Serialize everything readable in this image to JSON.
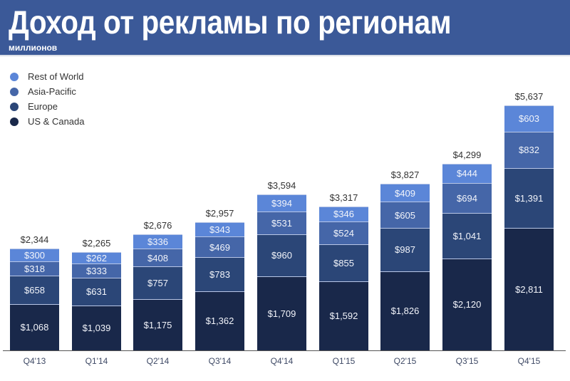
{
  "header": {
    "title": "Доход от рекламы по регионам",
    "subtitle": "миллионов",
    "background": "#3b5998"
  },
  "legend": [
    {
      "label": "Rest of World",
      "color": "#5b86d8"
    },
    {
      "label": "Asia-Pacific",
      "color": "#4566a8"
    },
    {
      "label": "Europe",
      "color": "#2b4677"
    },
    {
      "label": "US & Canada",
      "color": "#19284a"
    }
  ],
  "chart_data": {
    "type": "bar",
    "stacked": true,
    "title": "Доход от рекламы по регионам",
    "subtitle": "миллионов",
    "xlabel": "",
    "ylabel": "",
    "categories": [
      "Q4'13",
      "Q1'14",
      "Q2'14",
      "Q3'14",
      "Q4'14",
      "Q1'15",
      "Q2'15",
      "Q3'15",
      "Q4'15"
    ],
    "series": [
      {
        "name": "US & Canada",
        "color": "#19284a",
        "values": [
          1068,
          1039,
          1175,
          1362,
          1709,
          1592,
          1826,
          2120,
          2811
        ]
      },
      {
        "name": "Europe",
        "color": "#2b4677",
        "values": [
          658,
          631,
          757,
          783,
          960,
          855,
          987,
          1041,
          1391
        ]
      },
      {
        "name": "Asia-Pacific",
        "color": "#4566a8",
        "values": [
          318,
          333,
          408,
          469,
          531,
          524,
          605,
          694,
          832
        ]
      },
      {
        "name": "Rest of World",
        "color": "#5b86d8",
        "values": [
          300,
          262,
          336,
          343,
          394,
          346,
          409,
          444,
          603
        ]
      }
    ],
    "totals": [
      2344,
      2265,
      2676,
      2957,
      3594,
      3317,
      3827,
      4299,
      5637
    ],
    "value_labels": {
      "US & Canada": [
        "$1,068",
        "$1,039",
        "$1,175",
        "$1,362",
        "$1,709",
        "$1,592",
        "$1,826",
        "$2,120",
        "$2,811"
      ],
      "Europe": [
        "$658",
        "$631",
        "$757",
        "$783",
        "$960",
        "$855",
        "$987",
        "$1,041",
        "$1,391"
      ],
      "Asia-Pacific": [
        "$318",
        "$333",
        "$408",
        "$469",
        "$531",
        "$524",
        "$605",
        "$694",
        "$832"
      ],
      "Rest of World": [
        "$300",
        "$262",
        "$336",
        "$343",
        "$394",
        "$346",
        "$409",
        "$444",
        "$603"
      ]
    },
    "total_labels": [
      "$2,344",
      "$2,265",
      "$2,676",
      "$2,957",
      "$3,594",
      "$3,317",
      "$3,827",
      "$4,299",
      "$5,637"
    ],
    "legend_position": "top-left",
    "grid": false,
    "ylim": [
      0,
      5637
    ]
  }
}
